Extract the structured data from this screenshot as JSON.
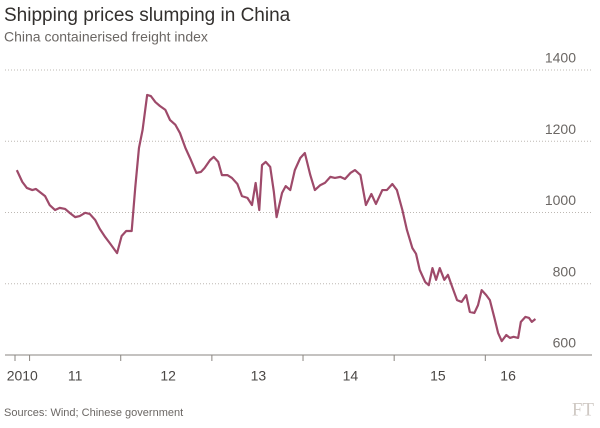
{
  "chart_data": {
    "type": "line",
    "title": "Shipping prices slumping in China",
    "subtitle": "China containerised freight index",
    "source": "Sources: Wind; Chinese government",
    "logo": "FT",
    "xlim": [
      2010.84,
      2016.6
    ],
    "ylim": [
      600,
      1400
    ],
    "yticks": [
      600,
      800,
      1000,
      1200,
      1400
    ],
    "xticks": [
      {
        "value": 2010.92,
        "label": "2010"
      },
      {
        "value": 2011.5,
        "label": "11"
      },
      {
        "value": 2012.52,
        "label": "12"
      },
      {
        "value": 2013.51,
        "label": "13"
      },
      {
        "value": 2014.52,
        "label": "14"
      },
      {
        "value": 2015.48,
        "label": "15"
      },
      {
        "value": 2016.25,
        "label": "16"
      }
    ],
    "grid": true,
    "series": [
      {
        "color": "#9e4a6a",
        "x": [
          2010.86,
          2010.92,
          2010.97,
          2011.03,
          2011.07,
          2011.11,
          2011.17,
          2011.22,
          2011.28,
          2011.33,
          2011.39,
          2011.44,
          2011.5,
          2011.55,
          2011.61,
          2011.66,
          2011.72,
          2011.77,
          2011.83,
          2011.88,
          2011.96,
          2012.01,
          2012.06,
          2012.12,
          2012.16,
          2012.2,
          2012.24,
          2012.29,
          2012.33,
          2012.38,
          2012.43,
          2012.49,
          2012.54,
          2012.6,
          2012.65,
          2012.71,
          2012.76,
          2012.83,
          2012.88,
          2012.92,
          2012.98,
          2013.02,
          2013.07,
          2013.11,
          2013.17,
          2013.22,
          2013.28,
          2013.33,
          2013.39,
          2013.44,
          2013.48,
          2013.52,
          2013.55,
          2013.59,
          2013.64,
          2013.68,
          2013.71,
          2013.77,
          2013.81,
          2013.86,
          2013.91,
          2013.97,
          2014.02,
          2014.08,
          2014.13,
          2014.19,
          2014.24,
          2014.3,
          2014.35,
          2014.41,
          2014.46,
          2014.52,
          2014.57,
          2014.63,
          2014.69,
          2014.75,
          2014.8,
          2014.87,
          2014.92,
          2014.98,
          2015.03,
          2015.09,
          2015.14,
          2015.2,
          2015.24,
          2015.28,
          2015.34,
          2015.38,
          2015.42,
          2015.46,
          2015.5,
          2015.55,
          2015.59,
          2015.63,
          2015.69,
          2015.74,
          2015.79,
          2015.83,
          2015.88,
          2015.92,
          2015.96,
          2016.01,
          2016.05,
          2016.1,
          2016.14,
          2016.18,
          2016.23,
          2016.27,
          2016.31,
          2016.36,
          2016.39,
          2016.44,
          2016.48,
          2016.51,
          2016.55
        ],
        "values": [
          1119,
          1086,
          1069,
          1063,
          1066,
          1058,
          1046,
          1021,
          1007,
          1013,
          1010,
          999,
          987,
          990,
          999,
          996,
          979,
          954,
          931,
          914,
          886,
          934,
          948,
          948,
          1072,
          1181,
          1232,
          1330,
          1327,
          1310,
          1299,
          1288,
          1260,
          1246,
          1223,
          1181,
          1153,
          1111,
          1114,
          1125,
          1147,
          1156,
          1142,
          1105,
          1105,
          1097,
          1080,
          1046,
          1041,
          1021,
          1083,
          1007,
          1133,
          1142,
          1128,
          1058,
          987,
          1055,
          1074,
          1063,
          1119,
          1153,
          1167,
          1105,
          1063,
          1077,
          1083,
          1100,
          1097,
          1100,
          1094,
          1111,
          1119,
          1105,
          1021,
          1052,
          1024,
          1063,
          1063,
          1080,
          1063,
          1007,
          951,
          900,
          884,
          839,
          805,
          796,
          844,
          811,
          844,
          811,
          825,
          796,
          754,
          749,
          768,
          721,
          718,
          740,
          782,
          768,
          754,
          704,
          662,
          639,
          656,
          648,
          651,
          648,
          693,
          707,
          704,
          693,
          701
        ]
      }
    ]
  }
}
